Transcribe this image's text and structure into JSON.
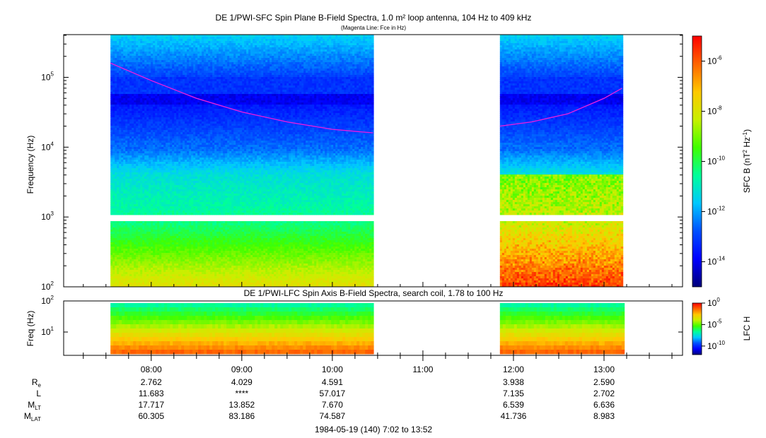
{
  "colors": {
    "background": "#ffffff",
    "fce_line": "#e020e0",
    "colormap": [
      "#00007a",
      "#0000ff",
      "#0050ff",
      "#00c8ff",
      "#00ff9a",
      "#40ff00",
      "#c8f000",
      "#ffc800",
      "#ff6400",
      "#ff0000"
    ]
  },
  "chart_data": [
    {
      "type": "heatmap",
      "title": "DE 1/PWI-SFC  Spin Plane B-Field Spectra, 1.0 m² loop antenna, 104 Hz to 409 kHz",
      "subtitle": "(Magenta Line: Fce in Hz)",
      "ylabel": "Frequency (Hz)",
      "yscale": "log",
      "ylim": [
        100,
        409000
      ],
      "yticks": [
        {
          "v": 100,
          "b": "10",
          "e": "2"
        },
        {
          "v": 1000,
          "b": "10",
          "e": "3"
        },
        {
          "v": 10000,
          "b": "10",
          "e": "4"
        },
        {
          "v": 100000,
          "b": "10",
          "e": "5"
        }
      ],
      "xlim_hours": [
        7.033,
        13.867
      ],
      "data_segments_hours": [
        [
          7.55,
          10.45
        ],
        [
          11.85,
          13.2
        ]
      ],
      "band_gap_hz": [
        880,
        1040
      ],
      "colorbar": {
        "label": "SFC B (nT² Hz⁻¹)",
        "scale": "log",
        "range": [
          1e-15,
          1e-05
        ],
        "ticks": [
          {
            "b": "10",
            "e": "-6",
            "v": -6
          },
          {
            "b": "10",
            "e": "-8",
            "v": -8
          },
          {
            "b": "10",
            "e": "-10",
            "v": -10
          },
          {
            "b": "10",
            "e": "-12",
            "v": -12
          },
          {
            "b": "10",
            "e": "-14",
            "v": -14
          }
        ]
      },
      "series": [
        {
          "name": "Fce in Hz",
          "x_hours": [
            7.55,
            8.0,
            8.5,
            9.0,
            9.5,
            10.0,
            10.45,
            11.85,
            12.2,
            12.6,
            13.0,
            13.2
          ],
          "y_hz": [
            160000,
            90000,
            50000,
            32000,
            23000,
            18000,
            16000,
            20000,
            23000,
            30000,
            50000,
            70000
          ]
        }
      ]
    },
    {
      "type": "heatmap",
      "title": "DE 1/PWI-LFC  Spin Axis B-Field Spectra, search coil, 1.78 to 100 Hz",
      "ylabel": "Freq (Hz)",
      "yscale": "log",
      "ylim": [
        1.78,
        100
      ],
      "yticks": [
        {
          "v": 10,
          "b": "10",
          "e": "1"
        },
        {
          "v": 100,
          "b": "10",
          "e": "2"
        }
      ],
      "data_segments_hours": [
        [
          7.55,
          10.45
        ],
        [
          11.85,
          13.2
        ]
      ],
      "colorbar": {
        "label": "LFC H",
        "scale": "log",
        "range": [
          1e-12,
          1
        ],
        "ticks": [
          {
            "b": "10",
            "e": "0",
            "v": 0
          },
          {
            "b": "10",
            "e": "-5",
            "v": -5
          },
          {
            "b": "10",
            "e": "-10",
            "v": -10
          }
        ]
      }
    }
  ],
  "time_axis": {
    "xlim_hours": [
      7.033,
      13.867
    ],
    "ticks": [
      {
        "h": 8,
        "label": "08:00"
      },
      {
        "h": 9,
        "label": "09:00"
      },
      {
        "h": 10,
        "label": "10:00"
      },
      {
        "h": 11,
        "label": "11:00"
      },
      {
        "h": 12,
        "label": "12:00"
      },
      {
        "h": 13,
        "label": "13:00"
      }
    ],
    "footer": "1984-05-19 (140) 7:02 to 13:52"
  },
  "ephemeris": {
    "rows": [
      {
        "label": "R",
        "sub": "e",
        "values": [
          "2.762",
          "4.029",
          "4.591",
          "",
          "3.938",
          "2.590"
        ]
      },
      {
        "label": "L",
        "sub": "",
        "values": [
          "11.683",
          "****",
          "57.017",
          "",
          "7.135",
          "2.702"
        ]
      },
      {
        "label": "M",
        "sub": "LT",
        "values": [
          "17.717",
          "13.852",
          "7.670",
          "",
          "6.539",
          "6.636"
        ]
      },
      {
        "label": "M",
        "sub": "LAT",
        "values": [
          "60.305",
          "83.186",
          "74.587",
          "",
          "41.736",
          "8.983"
        ]
      }
    ]
  }
}
